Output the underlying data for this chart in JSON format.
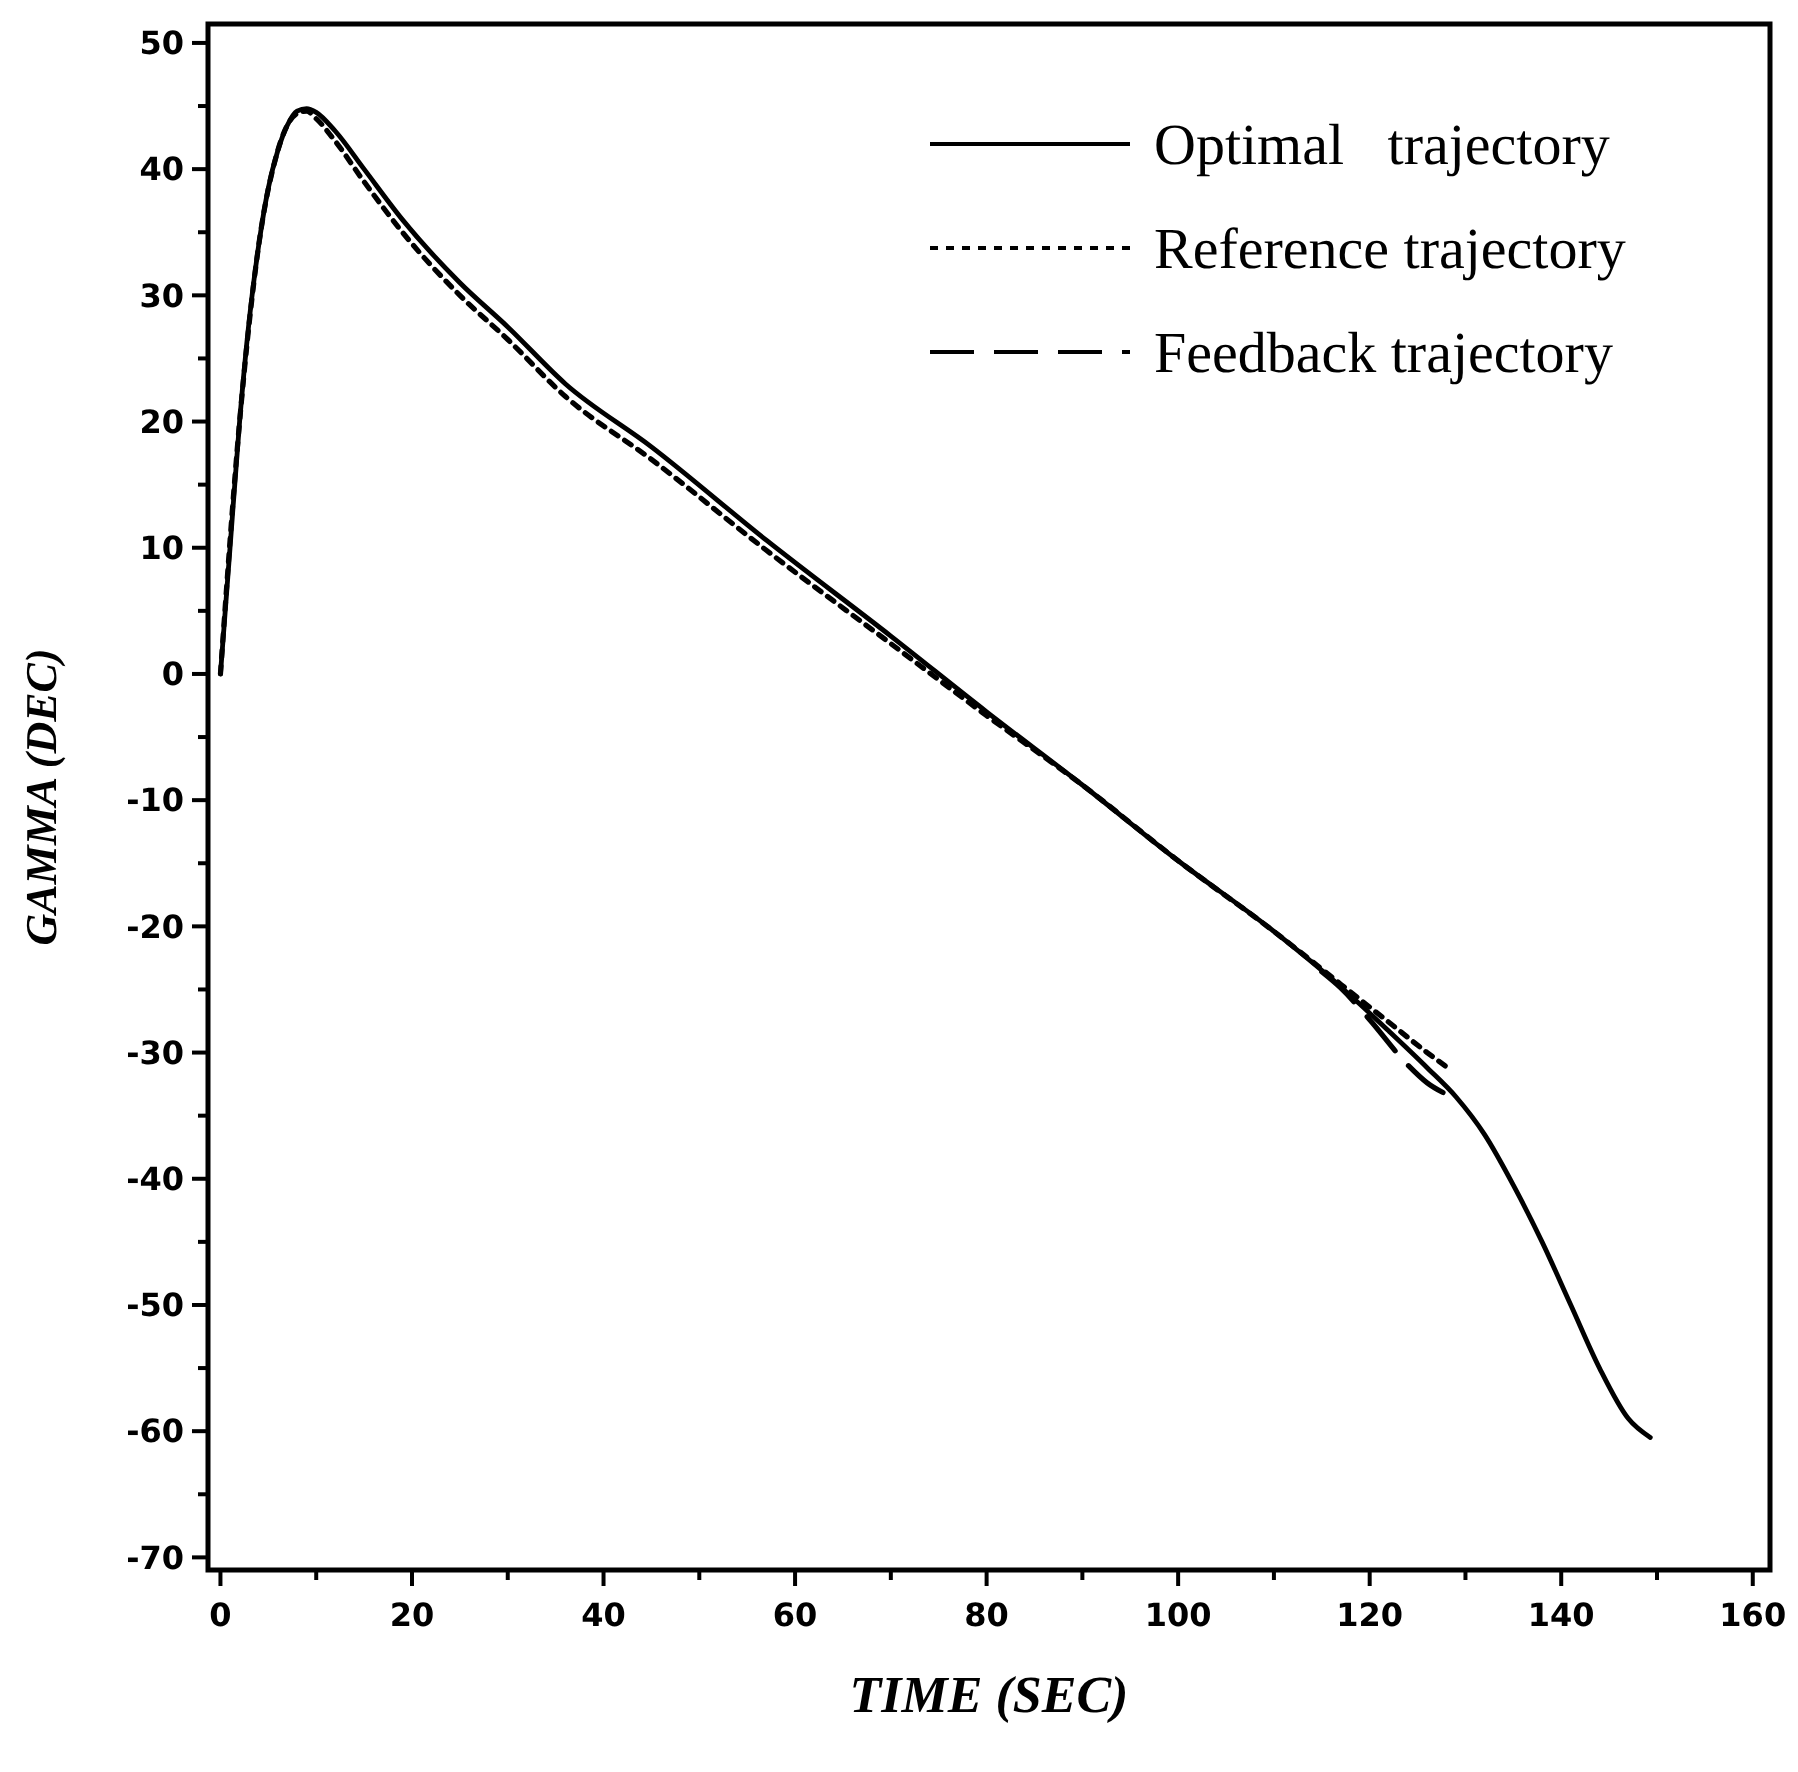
{
  "chart_data": {
    "type": "line",
    "xlabel": "TIME (SEC)",
    "ylabel": "GAMMA (DEC)",
    "xlim": [
      -1.3,
      161.8
    ],
    "ylim": [
      -71,
      51.5
    ],
    "xticks": [
      0,
      {
        "value": 10,
        "label": null
      },
      20,
      {
        "value": 30,
        "label": null
      },
      40,
      {
        "value": 50,
        "label": null
      },
      60,
      {
        "value": 70,
        "label": null
      },
      80,
      {
        "value": 90,
        "label": null
      },
      100,
      {
        "value": 110,
        "label": null
      },
      120,
      {
        "value": 130,
        "label": null
      },
      140,
      {
        "value": 150,
        "label": null
      },
      160
    ],
    "yticks": [
      -70,
      {
        "value": -65,
        "label": null
      },
      -60,
      {
        "value": -55,
        "label": null
      },
      -50,
      {
        "value": -45,
        "label": null
      },
      -40,
      {
        "value": -35,
        "label": null
      },
      -30,
      {
        "value": -25,
        "label": null
      },
      -20,
      {
        "value": -15,
        "label": null
      },
      -10,
      {
        "value": -5,
        "label": null
      },
      0,
      {
        "value": 5,
        "label": null
      },
      10,
      {
        "value": 15,
        "label": null
      },
      20,
      {
        "value": 25,
        "label": null
      },
      30,
      {
        "value": 35,
        "label": null
      },
      40,
      {
        "value": 45,
        "label": null
      },
      50
    ],
    "legend": "top right",
    "grid": false,
    "marker": "none",
    "series": [
      {
        "name": "Optimal   trajectory",
        "color": "#000000",
        "line_style": "solid",
        "x": [
          0,
          1,
          2,
          3,
          4,
          5,
          6,
          7,
          8,
          9,
          10,
          12,
          15,
          19,
          25,
          30,
          36,
          45,
          57,
          70,
          80,
          90,
          100,
          110,
          117,
          122,
          126,
          129,
          132,
          135,
          138,
          141,
          144,
          147,
          149.3
        ],
        "values": [
          0,
          10,
          20,
          28,
          34,
          38.5,
          41.5,
          43.5,
          44.6,
          44.8,
          44.5,
          43,
          40,
          36,
          31,
          27.5,
          23,
          18,
          10.6,
          3,
          -3,
          -8.8,
          -14.8,
          -20.4,
          -24.8,
          -28.3,
          -31.2,
          -33.5,
          -36.5,
          -40.5,
          -45,
          -50,
          -55,
          -59,
          -60.5
        ]
      },
      {
        "name": "Reference trajectory",
        "color": "#000000",
        "line_style": "dotted",
        "x": [
          0,
          2,
          4,
          6,
          8,
          9,
          10,
          12,
          15,
          19,
          25,
          30,
          36,
          45,
          57,
          70,
          80,
          90,
          100,
          110,
          117,
          122,
          126,
          128.5
        ],
        "values": [
          0,
          20,
          34,
          41.5,
          44.4,
          44.6,
          44,
          42.2,
          39,
          35,
          30,
          26.5,
          22,
          17,
          9.8,
          2.4,
          -3.3,
          -8.8,
          -14.8,
          -20.4,
          -24.6,
          -27.6,
          -30,
          -31.4
        ]
      },
      {
        "name": "Feedback trajectory",
        "color": "#000000",
        "line_style": "dashed",
        "x": [
          115,
          117,
          120,
          124,
          126,
          128
        ],
        "values": [
          -23.6,
          -24.9,
          -27.4,
          -31,
          -32.4,
          -33.3
        ]
      }
    ]
  }
}
